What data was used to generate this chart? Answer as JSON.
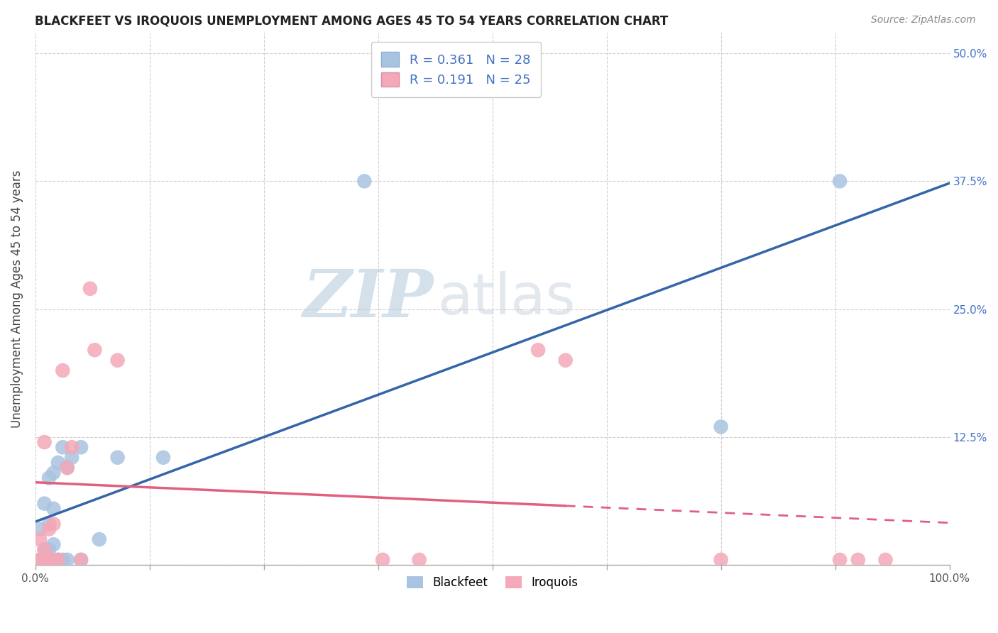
{
  "title": "BLACKFEET VS IROQUOIS UNEMPLOYMENT AMONG AGES 45 TO 54 YEARS CORRELATION CHART",
  "source": "Source: ZipAtlas.com",
  "ylabel": "Unemployment Among Ages 45 to 54 years",
  "xlim": [
    0.0,
    1.0
  ],
  "ylim": [
    0.0,
    0.52
  ],
  "xtick_positions": [
    0.0,
    0.125,
    0.25,
    0.375,
    0.5,
    0.625,
    0.75,
    0.875,
    1.0
  ],
  "xticklabels": [
    "0.0%",
    "",
    "",
    "",
    "",
    "",
    "",
    "",
    "100.0%"
  ],
  "ytick_positions": [
    0.0,
    0.125,
    0.25,
    0.375,
    0.5
  ],
  "yticklabels": [
    "",
    "12.5%",
    "25.0%",
    "37.5%",
    "50.0%"
  ],
  "blackfeet_color": "#a8c4e0",
  "iroquois_color": "#f4a8b8",
  "blackfeet_line_color": "#3465a8",
  "iroquois_line_color": "#e06080",
  "blackfeet_R": 0.361,
  "blackfeet_N": 28,
  "iroquois_R": 0.191,
  "iroquois_N": 25,
  "legend_R_color": "#4472c4",
  "title_color": "#222222",
  "source_color": "#888888",
  "grid_color": "#d0d0d0",
  "blackfeet_x": [
    0.005,
    0.005,
    0.008,
    0.01,
    0.01,
    0.015,
    0.015,
    0.015,
    0.015,
    0.02,
    0.02,
    0.02,
    0.02,
    0.025,
    0.025,
    0.03,
    0.03,
    0.035,
    0.035,
    0.04,
    0.05,
    0.05,
    0.07,
    0.09,
    0.14,
    0.36,
    0.75,
    0.88
  ],
  "blackfeet_y": [
    0.035,
    0.005,
    0.005,
    0.015,
    0.06,
    0.005,
    0.015,
    0.04,
    0.085,
    0.005,
    0.02,
    0.055,
    0.09,
    0.005,
    0.1,
    0.005,
    0.115,
    0.095,
    0.005,
    0.105,
    0.005,
    0.115,
    0.025,
    0.105,
    0.105,
    0.375,
    0.135,
    0.375
  ],
  "iroquois_x": [
    0.005,
    0.005,
    0.008,
    0.01,
    0.01,
    0.015,
    0.015,
    0.02,
    0.02,
    0.025,
    0.03,
    0.035,
    0.04,
    0.05,
    0.06,
    0.065,
    0.09,
    0.38,
    0.42,
    0.55,
    0.58,
    0.75,
    0.88,
    0.9,
    0.93
  ],
  "iroquois_y": [
    0.005,
    0.025,
    0.005,
    0.015,
    0.12,
    0.005,
    0.035,
    0.005,
    0.04,
    0.005,
    0.19,
    0.095,
    0.115,
    0.005,
    0.27,
    0.21,
    0.2,
    0.005,
    0.005,
    0.21,
    0.2,
    0.005,
    0.005,
    0.005,
    0.005
  ]
}
